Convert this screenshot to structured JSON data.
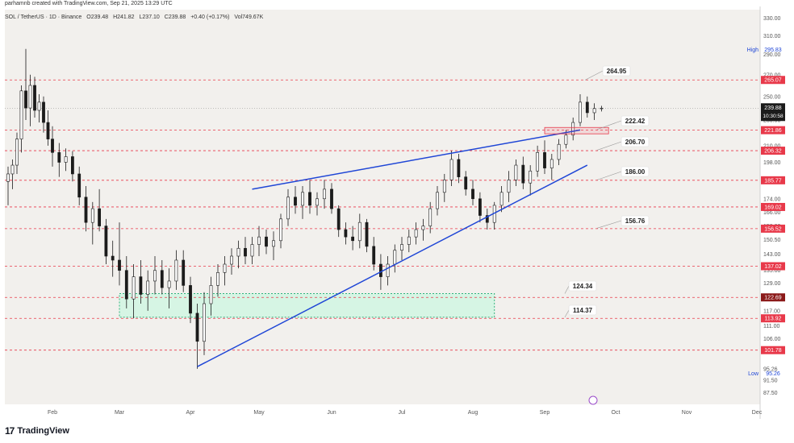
{
  "header": {
    "creator": "parhamnb created with TradingView.com, Sep 21, 2025 13:29 UTC",
    "symbol": "SOL / TetherUS · 1D · Binance",
    "open": "O239.48",
    "high": "H241.82",
    "low": "L237.10",
    "close": "C239.88",
    "change": "+0.40 (+0.17%)",
    "volume": "Vol749.67K"
  },
  "footer": {
    "brand": "TradingView",
    "brand_mark": "17"
  },
  "colors": {
    "background": "#f2f0ed",
    "up": "#ffffff",
    "down": "#1b1b1b",
    "level": "#e8394a",
    "trendline": "#1f46d6",
    "zone_fill": "#d6f5e4",
    "zone_border": "#2fb27b",
    "current_price_bg": "#1b1b1b"
  },
  "chart_data": {
    "type": "candlestick",
    "x_labels": [
      "Feb",
      "Mar",
      "Apr",
      "May",
      "Jun",
      "Jul",
      "Aug",
      "Sep",
      "Oct",
      "Nov",
      "Dec"
    ],
    "y_ticks": [
      87.5,
      91.5,
      95.26,
      101.78,
      106.0,
      111.0,
      117.0,
      122.69,
      129.0,
      135.0,
      143.0,
      150.5,
      158.0,
      166.0,
      174.0,
      186.0,
      198.0,
      210.0,
      222.0,
      230.0,
      250.0,
      270.0,
      290.0,
      310.0,
      330.0
    ],
    "y_tick_labels": [
      "87.50",
      "91.50",
      "95.26",
      "101.78",
      "106.00",
      "111.00",
      "117.00",
      "122.69",
      "129.00",
      "135.00",
      "143.00",
      "150.50",
      "158.00",
      "166.00",
      "174.00",
      "186.00",
      "198.00",
      "210.00",
      "222.00",
      "230.00",
      "250.00",
      "270.00",
      "290.00",
      "310.00",
      "330.00"
    ],
    "y_scale": "log",
    "ylim": [
      84,
      340
    ],
    "high_label": "High",
    "high_value": "295.83",
    "low_label": "Low",
    "low_value": "95.26",
    "current_price": "239.88",
    "countdown": "10:30:58",
    "levels": [
      {
        "value": 265.07,
        "label": "265.07"
      },
      {
        "value": 221.86,
        "label": "221.86"
      },
      {
        "value": 206.32,
        "label": "206.32"
      },
      {
        "value": 185.77,
        "label": "185.77"
      },
      {
        "value": 169.02,
        "label": "169.02"
      },
      {
        "value": 156.52,
        "label": "156.52"
      },
      {
        "value": 137.02,
        "label": "137.02"
      },
      {
        "value": 122.69,
        "label": "122.69"
      },
      {
        "value": 113.92,
        "label": "113.92"
      },
      {
        "value": 101.78,
        "label": "101.78"
      }
    ],
    "callouts": [
      "264.95",
      "222.42",
      "206.70",
      "186.00",
      "156.76",
      "124.34",
      "114.37"
    ],
    "zone": {
      "top": 124.34,
      "bottom": 114.37,
      "start_month": 2.0,
      "end_month": 7.3
    },
    "candles": [
      {
        "t": 0.0,
        "o": 185,
        "h": 195,
        "l": 170,
        "c": 190
      },
      {
        "t": 0.1,
        "o": 190,
        "h": 200,
        "l": 180,
        "c": 196
      },
      {
        "t": 0.2,
        "o": 196,
        "h": 220,
        "l": 190,
        "c": 215
      },
      {
        "t": 0.3,
        "o": 215,
        "h": 260,
        "l": 205,
        "c": 255
      },
      {
        "t": 0.4,
        "o": 255,
        "h": 295.83,
        "l": 230,
        "c": 240
      },
      {
        "t": 0.5,
        "o": 240,
        "h": 270,
        "l": 225,
        "c": 260
      },
      {
        "t": 0.6,
        "o": 260,
        "h": 268,
        "l": 232,
        "c": 238
      },
      {
        "t": 0.7,
        "o": 238,
        "h": 252,
        "l": 228,
        "c": 245
      },
      {
        "t": 0.8,
        "o": 245,
        "h": 250,
        "l": 220,
        "c": 228
      },
      {
        "t": 0.9,
        "o": 228,
        "h": 238,
        "l": 210,
        "c": 215
      },
      {
        "t": 1.0,
        "o": 215,
        "h": 225,
        "l": 195,
        "c": 205
      },
      {
        "t": 1.1,
        "o": 205,
        "h": 212,
        "l": 188,
        "c": 198
      },
      {
        "t": 1.2,
        "o": 198,
        "h": 208,
        "l": 192,
        "c": 202
      },
      {
        "t": 1.3,
        "o": 202,
        "h": 206,
        "l": 185,
        "c": 190
      },
      {
        "t": 1.4,
        "o": 190,
        "h": 195,
        "l": 170,
        "c": 175
      },
      {
        "t": 1.5,
        "o": 175,
        "h": 182,
        "l": 155,
        "c": 160
      },
      {
        "t": 1.6,
        "o": 160,
        "h": 172,
        "l": 148,
        "c": 168
      },
      {
        "t": 1.7,
        "o": 168,
        "h": 180,
        "l": 155,
        "c": 158
      },
      {
        "t": 1.8,
        "o": 158,
        "h": 162,
        "l": 138,
        "c": 142
      },
      {
        "t": 1.9,
        "o": 142,
        "h": 150,
        "l": 132,
        "c": 140
      },
      {
        "t": 2.0,
        "o": 140,
        "h": 160,
        "l": 128,
        "c": 135
      },
      {
        "t": 2.1,
        "o": 135,
        "h": 142,
        "l": 118,
        "c": 122
      },
      {
        "t": 2.2,
        "o": 122,
        "h": 138,
        "l": 113.92,
        "c": 132
      },
      {
        "t": 2.3,
        "o": 132,
        "h": 140,
        "l": 120,
        "c": 124
      },
      {
        "t": 2.4,
        "o": 124,
        "h": 135,
        "l": 117,
        "c": 130
      },
      {
        "t": 2.5,
        "o": 130,
        "h": 142,
        "l": 124,
        "c": 135
      },
      {
        "t": 2.6,
        "o": 135,
        "h": 140,
        "l": 124,
        "c": 127
      },
      {
        "t": 2.7,
        "o": 127,
        "h": 136,
        "l": 118,
        "c": 130
      },
      {
        "t": 2.8,
        "o": 130,
        "h": 145,
        "l": 126,
        "c": 140
      },
      {
        "t": 2.9,
        "o": 140,
        "h": 145,
        "l": 125,
        "c": 128
      },
      {
        "t": 3.0,
        "o": 128,
        "h": 132,
        "l": 112,
        "c": 116
      },
      {
        "t": 3.1,
        "o": 116,
        "h": 120,
        "l": 95.26,
        "c": 105
      },
      {
        "t": 3.2,
        "o": 105,
        "h": 125,
        "l": 100,
        "c": 120
      },
      {
        "t": 3.3,
        "o": 120,
        "h": 132,
        "l": 115,
        "c": 128
      },
      {
        "t": 3.4,
        "o": 128,
        "h": 138,
        "l": 123,
        "c": 134
      },
      {
        "t": 3.5,
        "o": 134,
        "h": 142,
        "l": 128,
        "c": 138
      },
      {
        "t": 3.6,
        "o": 138,
        "h": 146,
        "l": 133,
        "c": 142
      },
      {
        "t": 3.7,
        "o": 142,
        "h": 150,
        "l": 136,
        "c": 146
      },
      {
        "t": 3.8,
        "o": 146,
        "h": 152,
        "l": 138,
        "c": 142
      },
      {
        "t": 3.9,
        "o": 142,
        "h": 152,
        "l": 138,
        "c": 148
      },
      {
        "t": 4.0,
        "o": 148,
        "h": 158,
        "l": 142,
        "c": 152
      },
      {
        "t": 4.1,
        "o": 152,
        "h": 156,
        "l": 143,
        "c": 147
      },
      {
        "t": 4.2,
        "o": 147,
        "h": 155,
        "l": 140,
        "c": 150
      },
      {
        "t": 4.3,
        "o": 150,
        "h": 165,
        "l": 146,
        "c": 162
      },
      {
        "t": 4.4,
        "o": 162,
        "h": 180,
        "l": 158,
        "c": 175
      },
      {
        "t": 4.5,
        "o": 175,
        "h": 182,
        "l": 165,
        "c": 170
      },
      {
        "t": 4.6,
        "o": 170,
        "h": 182,
        "l": 162,
        "c": 178
      },
      {
        "t": 4.7,
        "o": 178,
        "h": 186,
        "l": 165,
        "c": 170
      },
      {
        "t": 4.8,
        "o": 170,
        "h": 178,
        "l": 164,
        "c": 174
      },
      {
        "t": 4.9,
        "o": 174,
        "h": 186,
        "l": 168,
        "c": 180
      },
      {
        "t": 5.0,
        "o": 180,
        "h": 184,
        "l": 165,
        "c": 168
      },
      {
        "t": 5.1,
        "o": 168,
        "h": 170,
        "l": 152,
        "c": 156
      },
      {
        "t": 5.2,
        "o": 156,
        "h": 160,
        "l": 148,
        "c": 152
      },
      {
        "t": 5.3,
        "o": 152,
        "h": 158,
        "l": 145,
        "c": 150
      },
      {
        "t": 5.4,
        "o": 150,
        "h": 165,
        "l": 146,
        "c": 160
      },
      {
        "t": 5.5,
        "o": 160,
        "h": 162,
        "l": 144,
        "c": 147
      },
      {
        "t": 5.6,
        "o": 147,
        "h": 152,
        "l": 135,
        "c": 138
      },
      {
        "t": 5.7,
        "o": 138,
        "h": 143,
        "l": 126,
        "c": 132
      },
      {
        "t": 5.8,
        "o": 132,
        "h": 142,
        "l": 128,
        "c": 138
      },
      {
        "t": 5.9,
        "o": 138,
        "h": 148,
        "l": 134,
        "c": 145
      },
      {
        "t": 6.0,
        "o": 145,
        "h": 152,
        "l": 140,
        "c": 148
      },
      {
        "t": 6.1,
        "o": 148,
        "h": 156,
        "l": 144,
        "c": 152
      },
      {
        "t": 6.2,
        "o": 152,
        "h": 160,
        "l": 148,
        "c": 156
      },
      {
        "t": 6.3,
        "o": 156,
        "h": 162,
        "l": 150,
        "c": 158
      },
      {
        "t": 6.4,
        "o": 158,
        "h": 172,
        "l": 154,
        "c": 168
      },
      {
        "t": 6.5,
        "o": 168,
        "h": 182,
        "l": 164,
        "c": 178
      },
      {
        "t": 6.6,
        "o": 178,
        "h": 190,
        "l": 172,
        "c": 186
      },
      {
        "t": 6.7,
        "o": 186,
        "h": 206.32,
        "l": 182,
        "c": 200
      },
      {
        "t": 6.8,
        "o": 200,
        "h": 204,
        "l": 184,
        "c": 188
      },
      {
        "t": 6.9,
        "o": 188,
        "h": 192,
        "l": 176,
        "c": 180
      },
      {
        "t": 7.0,
        "o": 180,
        "h": 186,
        "l": 170,
        "c": 174
      },
      {
        "t": 7.1,
        "o": 174,
        "h": 178,
        "l": 160,
        "c": 164
      },
      {
        "t": 7.2,
        "o": 164,
        "h": 168,
        "l": 156,
        "c": 160
      },
      {
        "t": 7.3,
        "o": 160,
        "h": 172,
        "l": 156,
        "c": 170
      },
      {
        "t": 7.4,
        "o": 170,
        "h": 182,
        "l": 166,
        "c": 178
      },
      {
        "t": 7.5,
        "o": 178,
        "h": 192,
        "l": 172,
        "c": 186
      },
      {
        "t": 7.6,
        "o": 186,
        "h": 200,
        "l": 182,
        "c": 196
      },
      {
        "t": 7.7,
        "o": 196,
        "h": 202,
        "l": 180,
        "c": 184
      },
      {
        "t": 7.8,
        "o": 184,
        "h": 196,
        "l": 176,
        "c": 192
      },
      {
        "t": 7.9,
        "o": 192,
        "h": 210,
        "l": 188,
        "c": 205
      },
      {
        "t": 8.0,
        "o": 205,
        "h": 214,
        "l": 190,
        "c": 194
      },
      {
        "t": 8.1,
        "o": 194,
        "h": 204,
        "l": 186,
        "c": 200
      },
      {
        "t": 8.2,
        "o": 200,
        "h": 215,
        "l": 196,
        "c": 211
      },
      {
        "t": 8.3,
        "o": 211,
        "h": 222,
        "l": 208,
        "c": 218
      },
      {
        "t": 8.4,
        "o": 218,
        "h": 232,
        "l": 214,
        "c": 228
      },
      {
        "t": 8.5,
        "o": 228,
        "h": 252,
        "l": 225,
        "c": 245
      },
      {
        "t": 8.6,
        "o": 245,
        "h": 250,
        "l": 232,
        "c": 236
      },
      {
        "t": 8.7,
        "o": 236,
        "h": 244,
        "l": 230,
        "c": 239.48
      },
      {
        "t": 8.8,
        "o": 239.48,
        "h": 241.82,
        "l": 237.1,
        "c": 239.88
      }
    ]
  }
}
